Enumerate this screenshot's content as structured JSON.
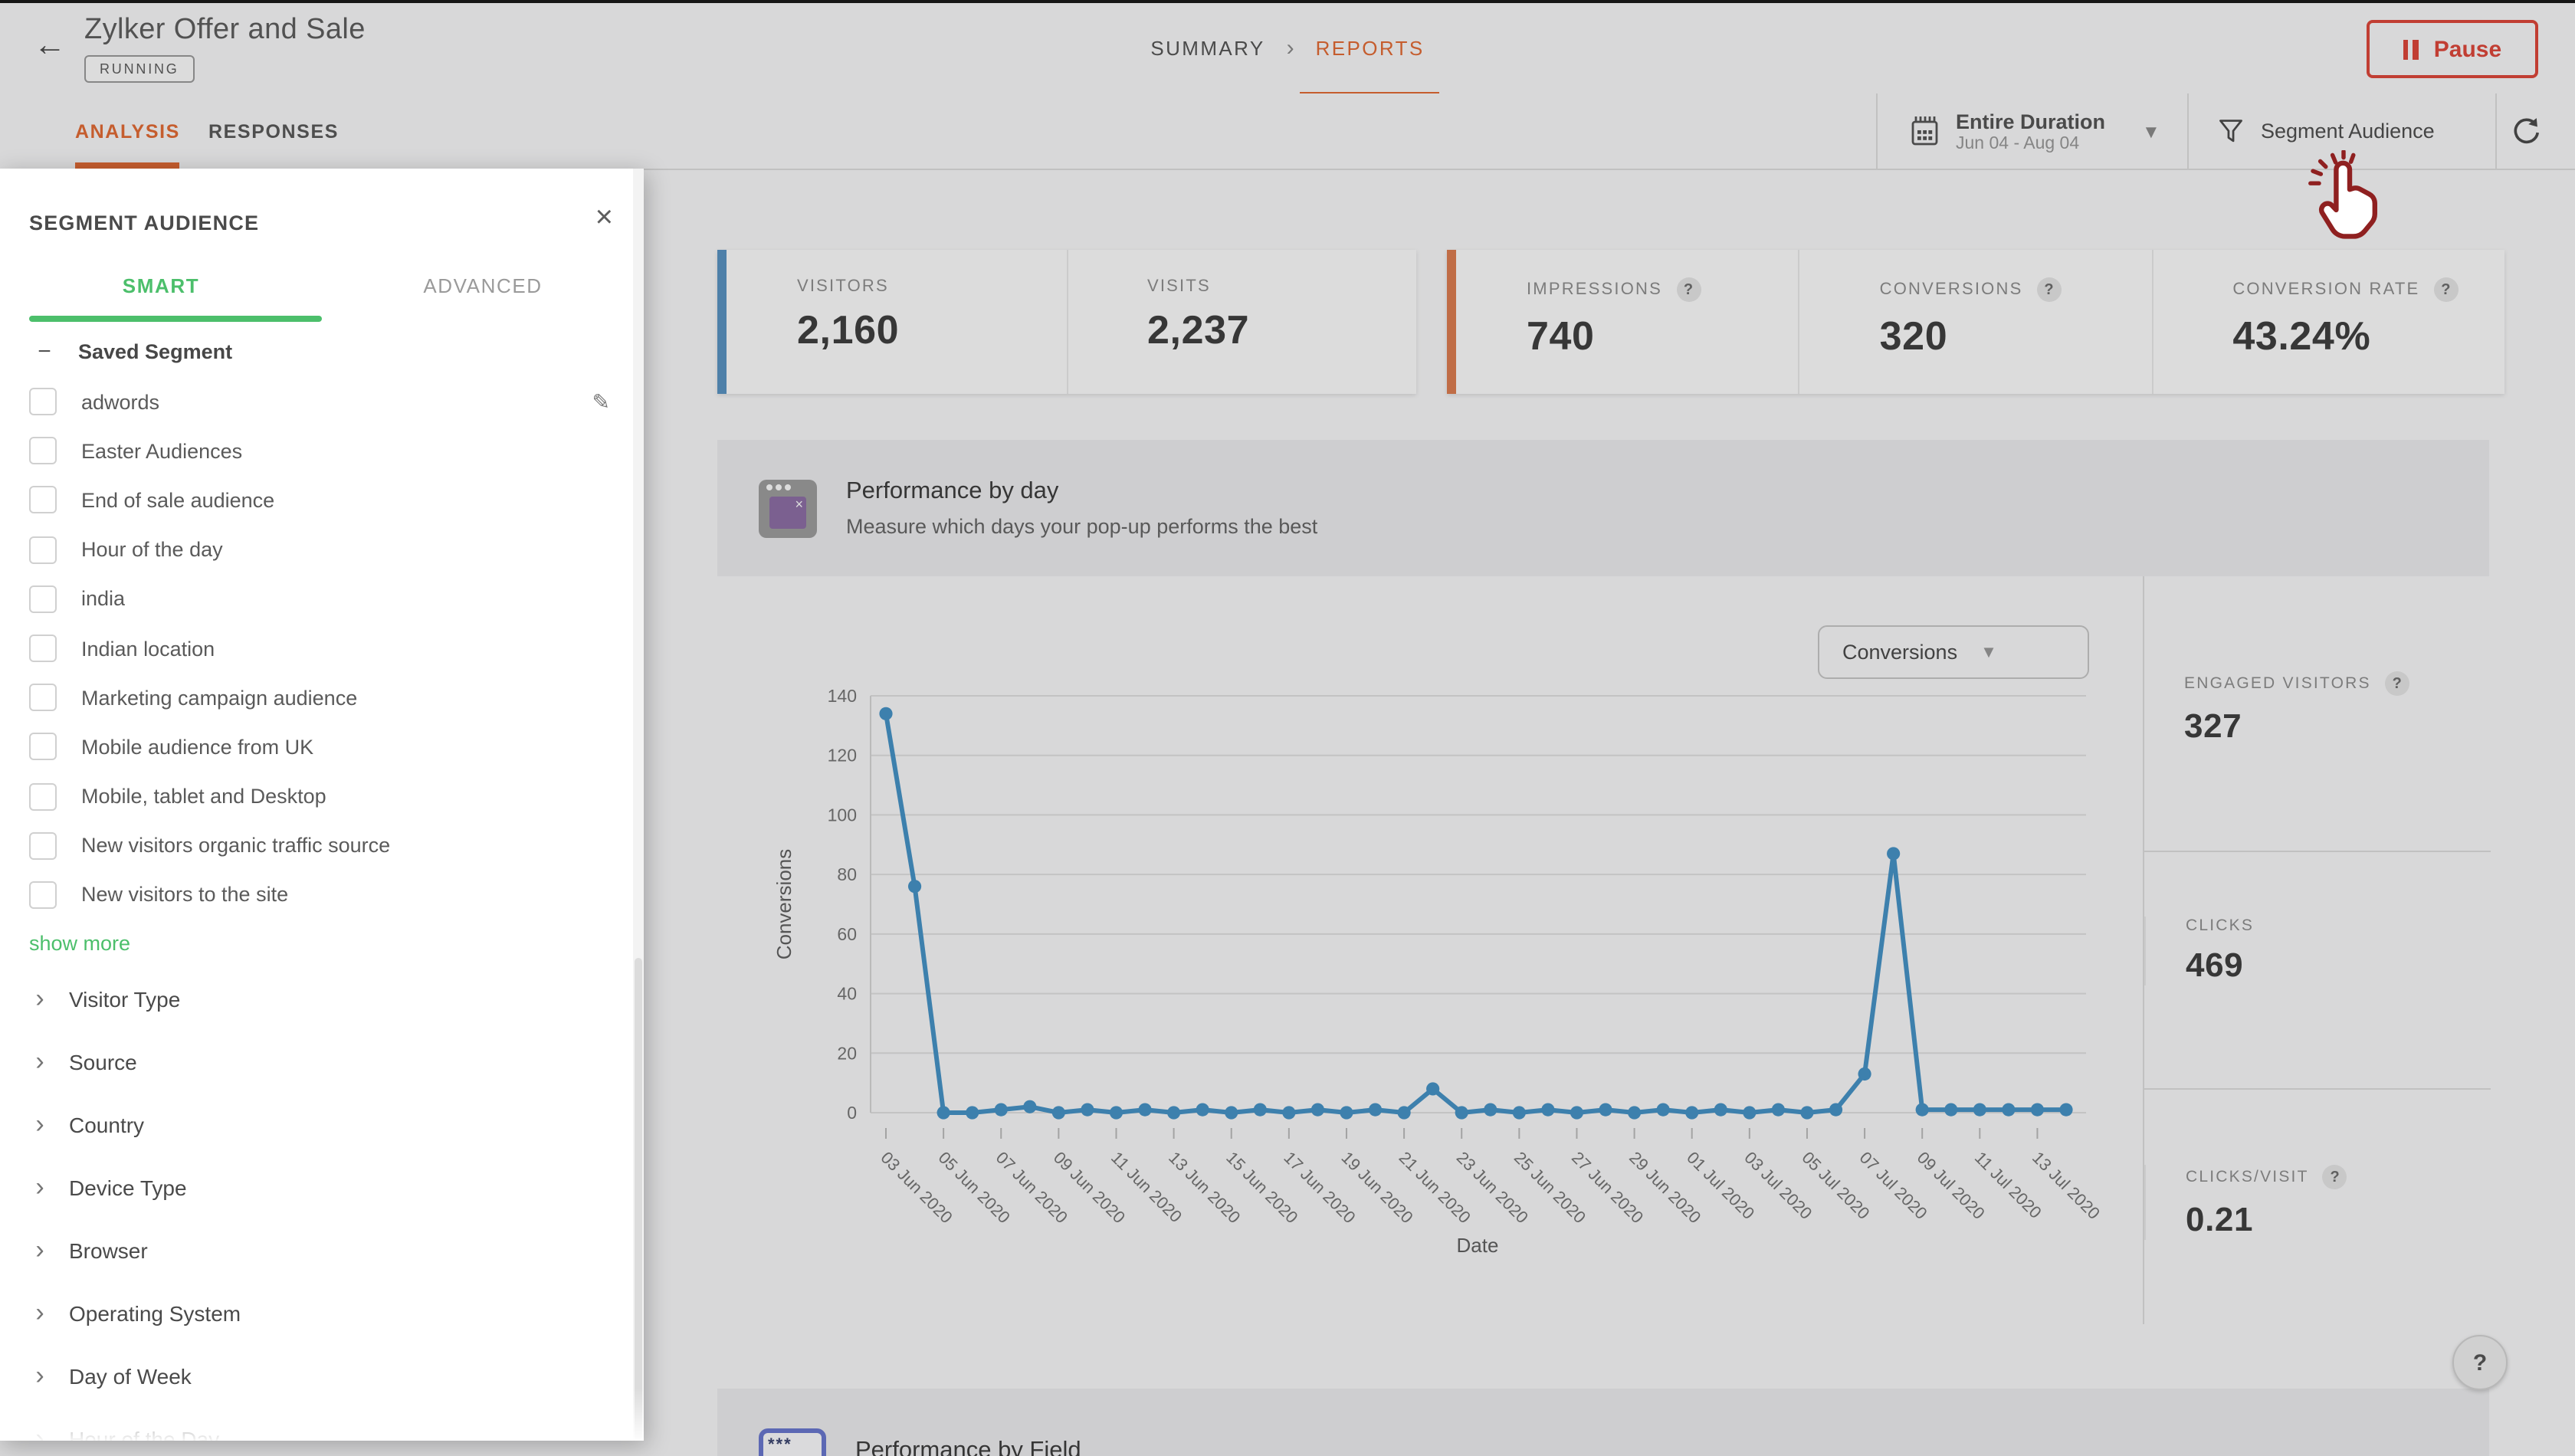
{
  "icons": {
    "back_arrow": "←",
    "close": "×",
    "chevron_right": "›",
    "breadcrumb_chevron": "›",
    "collapse_minus": "−",
    "pencil": "✎",
    "caret_down": "▼",
    "dropdown_triangle": "▼",
    "help": "?",
    "window_x": "×",
    "field_stars": "***"
  },
  "header": {
    "title": "Zylker Offer and Sale",
    "status": "RUNNING",
    "breadcrumb": [
      "SUMMARY",
      "REPORTS"
    ],
    "pause_label": "Pause"
  },
  "toolbar": {
    "tabs": [
      "ANALYSIS",
      "RESPONSES"
    ],
    "active_tab": "ANALYSIS",
    "duration_label": "Entire Duration",
    "duration_range": "Jun 04 - Aug 04",
    "segment_audience_label": "Segment Audience"
  },
  "segment_panel": {
    "title": "SEGMENT AUDIENCE",
    "tabs": [
      "SMART",
      "ADVANCED"
    ],
    "active_tab": "SMART",
    "group_label": "Saved Segment",
    "segments": [
      {
        "label": "adwords",
        "editable": true
      },
      {
        "label": "Easter Audiences",
        "editable": false
      },
      {
        "label": "End of sale audience",
        "editable": false
      },
      {
        "label": "Hour of the day",
        "editable": false
      },
      {
        "label": "india",
        "editable": false
      },
      {
        "label": "Indian location",
        "editable": false
      },
      {
        "label": "Marketing campaign audience",
        "editable": false
      },
      {
        "label": "Mobile audience from UK",
        "editable": false
      },
      {
        "label": "Mobile, tablet and Desktop",
        "editable": false
      },
      {
        "label": "New visitors organic traffic source",
        "editable": false
      },
      {
        "label": "New visitors to the site",
        "editable": false
      }
    ],
    "show_more_label": "show more",
    "categories": [
      "Visitor Type",
      "Source",
      "Country",
      "Device Type",
      "Browser",
      "Operating System",
      "Day of Week",
      "Hour of the Day"
    ]
  },
  "stats": {
    "visits_card": [
      {
        "label": "VISITORS",
        "value": "2,160",
        "help": false
      },
      {
        "label": "VISITS",
        "value": "2,237",
        "help": false
      }
    ],
    "impressions_card": [
      {
        "label": "IMPRESSIONS",
        "value": "740",
        "help": true
      },
      {
        "label": "CONVERSIONS",
        "value": "320",
        "help": true
      },
      {
        "label": "CONVERSION RATE",
        "value": "43.24%",
        "help": true
      }
    ]
  },
  "performance_by_day": {
    "title": "Performance by day",
    "subtitle": "Measure which days your pop-up performs the best",
    "metric_dropdown": "Conversions",
    "side_stats": [
      {
        "label": "ENGAGED VISITORS",
        "value": "327",
        "help": true
      },
      {
        "label": "CLICKS",
        "value": "469",
        "help": false
      },
      {
        "label": "CLICKS/VISIT",
        "value": "0.21",
        "help": true
      }
    ]
  },
  "performance_by_field": {
    "title": "Performance by Field"
  },
  "chart_data": {
    "type": "line",
    "title": "Performance by day",
    "xlabel": "Date",
    "ylabel": "Conversions",
    "ylim": [
      0,
      140
    ],
    "yticks": [
      0,
      20,
      40,
      60,
      80,
      100,
      120,
      140
    ],
    "grid": true,
    "legend": false,
    "tick_label_every": 2,
    "color": "#4694C8",
    "x": [
      "03 Jun 2020",
      "04 Jun 2020",
      "05 Jun 2020",
      "06 Jun 2020",
      "07 Jun 2020",
      "08 Jun 2020",
      "09 Jun 2020",
      "10 Jun 2020",
      "11 Jun 2020",
      "12 Jun 2020",
      "13 Jun 2020",
      "14 Jun 2020",
      "15 Jun 2020",
      "16 Jun 2020",
      "17 Jun 2020",
      "18 Jun 2020",
      "19 Jun 2020",
      "20 Jun 2020",
      "21 Jun 2020",
      "22 Jun 2020",
      "23 Jun 2020",
      "24 Jun 2020",
      "25 Jun 2020",
      "26 Jun 2020",
      "27 Jun 2020",
      "28 Jun 2020",
      "29 Jun 2020",
      "30 Jun 2020",
      "01 Jul 2020",
      "02 Jul 2020",
      "03 Jul 2020",
      "04 Jul 2020",
      "05 Jul 2020",
      "06 Jul 2020",
      "07 Jul 2020",
      "08 Jul 2020",
      "09 Jul 2020",
      "10 Jul 2020",
      "11 Jul 2020",
      "12 Jul 2020",
      "13 Jul 2020",
      "14 Jul 2020"
    ],
    "values": [
      134,
      76,
      0,
      0,
      1,
      2,
      0,
      1,
      0,
      1,
      0,
      1,
      0,
      1,
      0,
      1,
      0,
      1,
      0,
      8,
      0,
      1,
      0,
      1,
      0,
      1,
      0,
      1,
      0,
      1,
      0,
      1,
      0,
      1,
      13,
      87,
      1,
      1,
      1,
      1,
      1,
      1
    ]
  },
  "colors": {
    "accent_orange": "#E56B34",
    "accent_red": "#E0473A",
    "accent_green": "#4CBF6B",
    "chart_line": "#4694C8",
    "card_accent_blue": "#5A94C4",
    "card_accent_orange": "#DF7E50",
    "cursor_red": "#8F2020"
  }
}
